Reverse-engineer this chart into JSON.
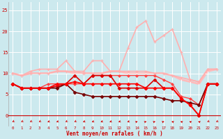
{
  "xlabel": "Vent moyen/en rafales ( km/h )",
  "bg_color": "#cce9ee",
  "grid_color": "#ffffff",
  "x_ticks": [
    0,
    1,
    2,
    3,
    4,
    5,
    6,
    7,
    8,
    9,
    10,
    11,
    12,
    13,
    14,
    15,
    16,
    17,
    18,
    19,
    20,
    21,
    22,
    23
  ],
  "ylim": [
    -2.5,
    27
  ],
  "yticks": [
    0,
    5,
    10,
    15,
    20,
    25
  ],
  "lines": [
    {
      "y": [
        10.0,
        9.5,
        10.5,
        11.0,
        11.0,
        11.0,
        13.0,
        10.5,
        10.5,
        13.0,
        13.0,
        10.5,
        10.5,
        10.5,
        10.5,
        10.5,
        10.0,
        10.0,
        9.5,
        9.0,
        8.5,
        8.0,
        11.0,
        11.0
      ],
      "color": "#ffb0b0",
      "lw": 1.2,
      "marker": "+",
      "ms": 3.5,
      "mew": 0.8,
      "zorder": 2
    },
    {
      "y": [
        10.0,
        9.5,
        10.0,
        10.0,
        10.0,
        10.5,
        10.5,
        10.5,
        10.0,
        10.0,
        10.0,
        10.5,
        10.5,
        16.0,
        21.0,
        22.5,
        17.5,
        19.0,
        20.5,
        15.0,
        8.5,
        8.0,
        11.0,
        11.0
      ],
      "color": "#ffb0b0",
      "lw": 1.2,
      "marker": "+",
      "ms": 3.5,
      "mew": 0.8,
      "zorder": 2
    },
    {
      "y": [
        10.0,
        9.5,
        10.0,
        10.0,
        10.0,
        10.5,
        10.5,
        10.0,
        10.0,
        10.0,
        10.0,
        10.5,
        10.5,
        10.0,
        10.0,
        10.0,
        10.0,
        10.0,
        9.5,
        8.5,
        8.0,
        7.5,
        10.5,
        11.0
      ],
      "color": "#ffbbbb",
      "lw": 2.0,
      "marker": null,
      "ms": 0,
      "mew": 0,
      "zorder": 1
    },
    {
      "y": [
        7.5,
        6.5,
        6.5,
        6.5,
        7.5,
        7.5,
        7.5,
        7.5,
        7.5,
        9.5,
        9.5,
        9.5,
        9.5,
        9.5,
        9.5,
        9.5,
        9.5,
        8.5,
        7.5,
        4.5,
        4.0,
        2.5,
        7.5,
        7.5
      ],
      "color": "#ff4444",
      "lw": 1.0,
      "marker": "D",
      "ms": 2.0,
      "mew": 0.5,
      "zorder": 3
    },
    {
      "y": [
        7.5,
        6.5,
        6.5,
        6.5,
        6.5,
        7.0,
        7.5,
        9.5,
        7.5,
        9.5,
        9.5,
        9.5,
        6.5,
        6.5,
        6.5,
        6.5,
        8.5,
        6.5,
        6.5,
        4.0,
        2.5,
        0.0,
        7.5,
        7.5
      ],
      "color": "#dd0000",
      "lw": 1.2,
      "marker": "D",
      "ms": 2.5,
      "mew": 0.5,
      "zorder": 4
    },
    {
      "y": [
        7.5,
        6.5,
        6.5,
        6.5,
        6.5,
        6.5,
        7.5,
        5.5,
        5.0,
        4.5,
        4.5,
        4.5,
        4.5,
        4.5,
        4.5,
        4.5,
        4.5,
        4.0,
        3.5,
        3.5,
        3.0,
        2.5,
        7.5,
        7.5
      ],
      "color": "#770000",
      "lw": 1.2,
      "marker": "D",
      "ms": 2.5,
      "mew": 0.5,
      "zorder": 4
    },
    {
      "y": [
        7.5,
        6.5,
        6.5,
        6.5,
        6.5,
        7.5,
        7.5,
        8.0,
        7.5,
        7.5,
        7.5,
        7.5,
        7.5,
        7.5,
        7.5,
        6.5,
        6.5,
        6.5,
        6.5,
        4.0,
        2.5,
        0.0,
        7.5,
        7.5
      ],
      "color": "#ff0000",
      "lw": 1.2,
      "marker": "D",
      "ms": 2.5,
      "mew": 0.5,
      "zorder": 4
    }
  ],
  "wind_angles": [
    210,
    210,
    210,
    210,
    225,
    225,
    210,
    210,
    225,
    225,
    225,
    225,
    225,
    225,
    45,
    45,
    45,
    45,
    315,
    315,
    315,
    315,
    210,
    210
  ],
  "font_color": "#cc0000",
  "arrow_color": "#cc0000",
  "sep_line_color": "#cc0000"
}
